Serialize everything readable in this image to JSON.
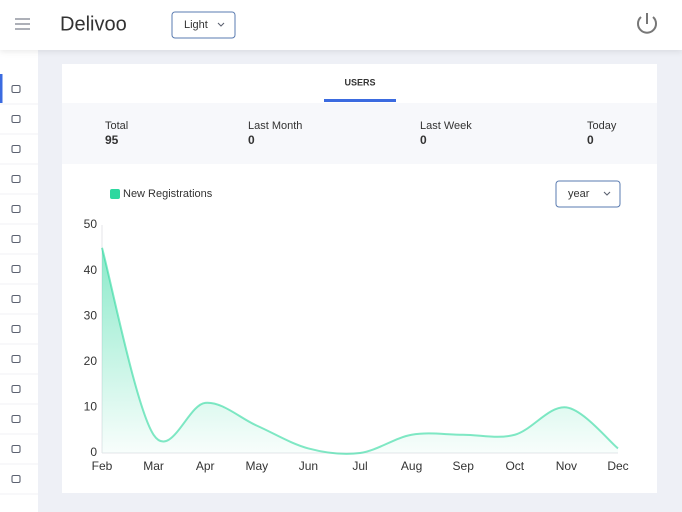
{
  "header": {
    "brand": "Delivoo",
    "theme_select": "Light"
  },
  "tabs": [
    "USERS"
  ],
  "stats": [
    {
      "label": "Total",
      "value": 95
    },
    {
      "label": "Last Month",
      "value": 0
    },
    {
      "label": "Last Week",
      "value": 0
    },
    {
      "label": "Today",
      "value": 0
    }
  ],
  "range_select": "year",
  "chart_data": {
    "type": "area",
    "categories": [
      "Feb",
      "Mar",
      "Apr",
      "May",
      "Jun",
      "Jul",
      "Aug",
      "Sep",
      "Oct",
      "Nov",
      "Dec"
    ],
    "series": [
      {
        "name": "New Registrations",
        "color": "#2dd89f",
        "values": [
          45,
          4,
          11,
          6,
          1,
          0,
          4,
          4,
          4,
          10,
          1
        ]
      }
    ],
    "ylim": [
      0,
      50
    ],
    "yticks": [
      0,
      10,
      20,
      30,
      40,
      50
    ],
    "grid": false,
    "smooth": true
  }
}
